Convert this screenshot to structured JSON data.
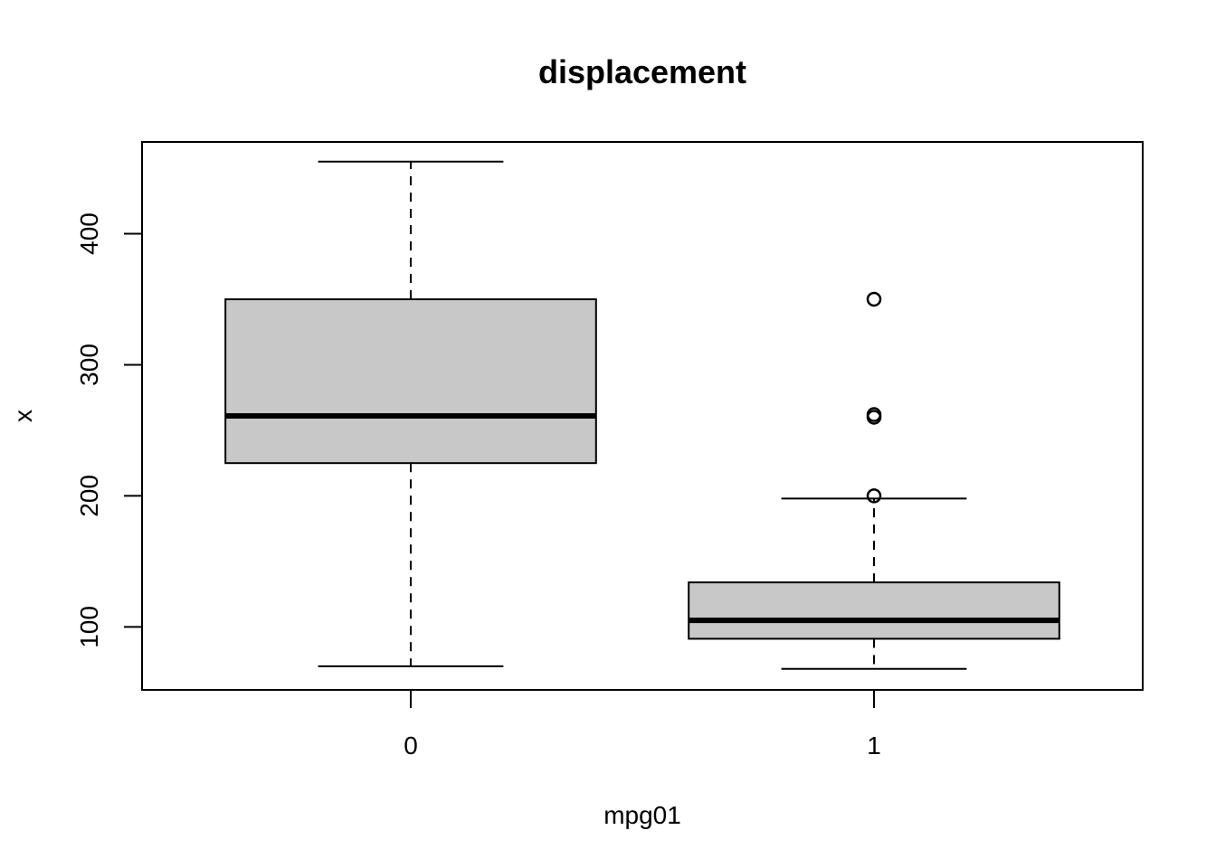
{
  "chart_data": {
    "type": "boxplot",
    "title": "displacement",
    "xlabel": "mpg01",
    "ylabel": "x",
    "categories": [
      "0",
      "1"
    ],
    "ylim": [
      52,
      470
    ],
    "yticks": [
      100,
      200,
      300,
      400
    ],
    "grid": false,
    "legend": "none",
    "box_fill": "#c8c8c8",
    "boxes": [
      {
        "category": "0",
        "whisker_low": 70,
        "q1": 225,
        "median": 261,
        "q3": 350,
        "whisker_high": 455,
        "outliers": []
      },
      {
        "category": "1",
        "whisker_low": 68,
        "q1": 91,
        "median": 105,
        "q3": 134,
        "whisker_high": 198,
        "outliers": [
          350,
          262,
          260,
          200
        ]
      }
    ]
  }
}
